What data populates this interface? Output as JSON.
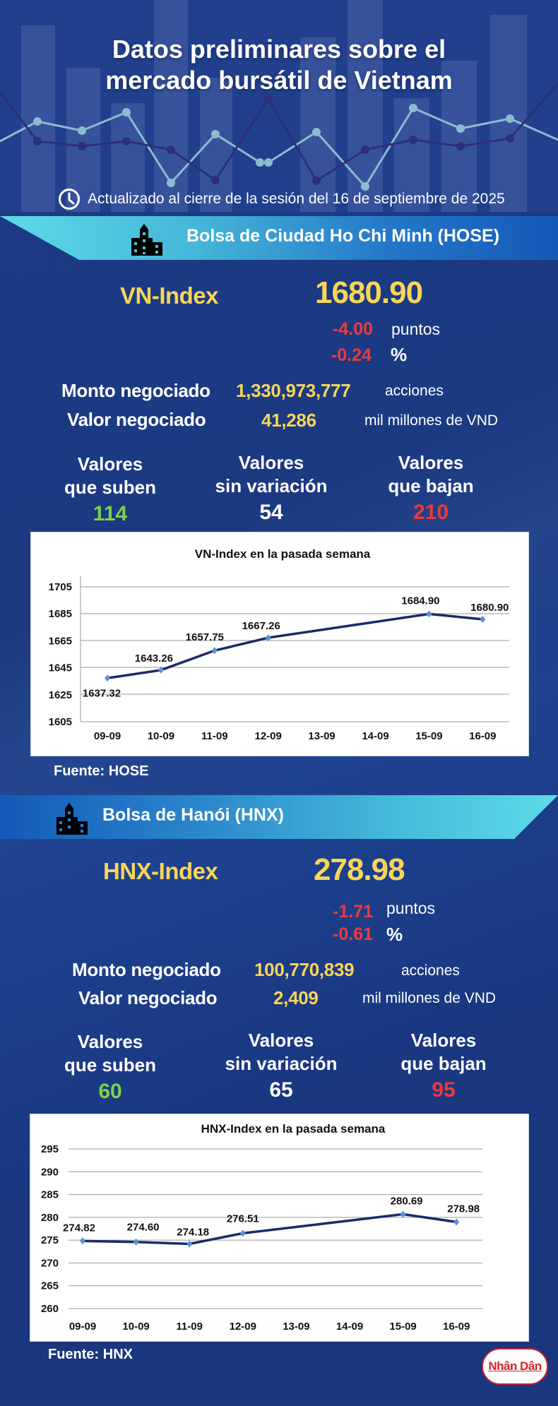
{
  "header": {
    "title_line1": "Datos preliminares sobre el",
    "title_line2": "mercado bursátil de Vietnam",
    "updated_text": "Actualizado al cierre de la sesión del 16 de septiembre de 2025",
    "updated_icon": "clock-icon"
  },
  "hose": {
    "banner_title": "Bolsa de Ciudad Ho Chi Minh (HOSE)",
    "banner_icon": "building-icon",
    "index_name": "VN-Index",
    "index_value": "1680.90",
    "change_points": "-4.00",
    "change_points_unit": "puntos",
    "change_pct": "-0.24",
    "change_pct_unit": "%",
    "volume_label": "Monto negociado",
    "volume_value": "1,330,973,777",
    "volume_unit": "acciones",
    "value_label": "Valor negociado",
    "value_value": "41,286",
    "value_unit": "mil millones de VND",
    "stats": [
      {
        "label1": "Valores",
        "label2": "que suben",
        "count": "114",
        "color": "#7bd24a"
      },
      {
        "label1": "Valores",
        "label2": "sin variación",
        "count": "54",
        "color": "#ffffff"
      },
      {
        "label1": "Valores",
        "label2": "que bajan",
        "count": "210",
        "color": "#ee3a3a"
      }
    ],
    "source": "Fuente: HOSE"
  },
  "hnx": {
    "banner_title": "Bolsa de Hanói (HNX)",
    "banner_icon": "building-icon",
    "index_name": "HNX-Index",
    "index_value": "278.98",
    "change_points": "-1.71",
    "change_points_unit": "puntos",
    "change_pct": "-0.61",
    "change_pct_unit": "%",
    "volume_label": "Monto negociado",
    "volume_value": "100,770,839",
    "volume_unit": "acciones",
    "value_label": "Valor negociado",
    "value_value": "2,409",
    "value_unit": "mil millones de VND",
    "stats": [
      {
        "label1": "Valores",
        "label2": "que suben",
        "count": "60",
        "color": "#7bd24a"
      },
      {
        "label1": "Valores",
        "label2": "sin variación",
        "count": "65",
        "color": "#ffffff"
      },
      {
        "label1": "Valores",
        "label2": "que bajan",
        "count": "95",
        "color": "#ee3a3a"
      }
    ],
    "source": "Fuente:  HNX"
  },
  "logo": {
    "text": "Nhân Dân"
  },
  "colors": {
    "background": "#1a3780",
    "accent_yellow": "#f8d558",
    "up_green": "#7bd24a",
    "down_red": "#ee3a3a",
    "banner_cyan": "#5ad8e3",
    "banner_blue": "#1565c0",
    "line_navy": "#1b2a6b"
  },
  "chart_data": [
    {
      "type": "line",
      "title": "VN-Index en la pasada semana",
      "categories": [
        "09-09",
        "10-09",
        "11-09",
        "12-09",
        "13-09",
        "14-09",
        "15-09",
        "16-09"
      ],
      "series": [
        {
          "name": "VN-Index",
          "values": [
            1637.32,
            1643.26,
            1657.75,
            1667.26,
            null,
            null,
            1684.9,
            1680.9
          ]
        }
      ],
      "data_labels": [
        "1637.32",
        "1643.26",
        "1657.75",
        "1667.26",
        "",
        "",
        "1684.90",
        "1680.90"
      ],
      "xlabel": "",
      "ylabel": "",
      "yticks": [
        1605,
        1625,
        1645,
        1665,
        1685,
        1705
      ],
      "ylim": [
        1605,
        1705
      ],
      "grid": true,
      "legend": "none"
    },
    {
      "type": "line",
      "title": "HNX-Index en la pasada semana",
      "categories": [
        "09-09",
        "10-09",
        "11-09",
        "12-09",
        "13-09",
        "14-09",
        "15-09",
        "16-09"
      ],
      "series": [
        {
          "name": "HNX-Index",
          "values": [
            274.82,
            274.6,
            274.18,
            276.51,
            null,
            null,
            280.69,
            278.98
          ]
        }
      ],
      "data_labels": [
        "274.82",
        "274.60",
        "274.18",
        "276.51",
        "",
        "",
        "280.69",
        "278.98"
      ],
      "xlabel": "",
      "ylabel": "",
      "yticks": [
        260,
        265,
        270,
        275,
        280,
        285,
        290,
        295
      ],
      "ylim": [
        260,
        295
      ],
      "grid": true,
      "legend": "none"
    }
  ]
}
